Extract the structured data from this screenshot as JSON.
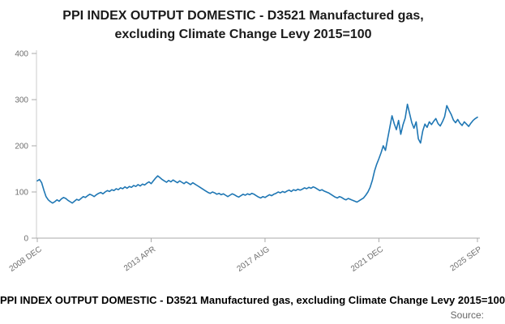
{
  "title": {
    "line1": "PPI INDEX OUTPUT DOMESTIC - D3521 Manufactured gas,",
    "line2": "excluding Climate Change Levy 2015=100"
  },
  "caption": {
    "text": "PPI INDEX OUTPUT DOMESTIC - D3521 Manufactured gas, excluding Climate Change Levy 2015=100",
    "source_label": "Source:"
  },
  "chart_data": {
    "type": "line",
    "title": "PPI INDEX OUTPUT DOMESTIC - D3521 Manufactured gas, excluding Climate Change Levy 2015=100",
    "frequency": "monthly",
    "x_start": "2008 DEC",
    "x_end": "2025 SEP",
    "x_tick_labels": [
      "2008 DEC",
      "2013 APR",
      "2017 AUG",
      "2021 DEC",
      "2025 SEP"
    ],
    "x_tick_indices": [
      0,
      52,
      104,
      156,
      201
    ],
    "y_ticks": [
      0,
      100,
      200,
      300,
      400
    ],
    "ylim": [
      0,
      400
    ],
    "grid": false,
    "legend": "none",
    "line_color": "#1f77b4",
    "series": [
      {
        "name": "PPI INDEX OUTPUT DOMESTIC - D3521 Manufactured gas, excluding Climate Change Levy 2015=100",
        "values": [
          124,
          127,
          120,
          104,
          90,
          83,
          79,
          76,
          79,
          83,
          80,
          85,
          88,
          86,
          82,
          79,
          76,
          80,
          84,
          82,
          86,
          90,
          88,
          92,
          95,
          93,
          90,
          94,
          97,
          99,
          96,
          100,
          103,
          101,
          105,
          103,
          107,
          105,
          109,
          107,
          111,
          108,
          112,
          110,
          114,
          112,
          116,
          113,
          117,
          115,
          119,
          122,
          118,
          124,
          130,
          135,
          131,
          127,
          124,
          121,
          125,
          122,
          126,
          123,
          120,
          124,
          121,
          118,
          122,
          119,
          116,
          120,
          117,
          114,
          111,
          108,
          105,
          102,
          99,
          97,
          100,
          98,
          95,
          97,
          94,
          96,
          93,
          90,
          93,
          96,
          94,
          91,
          89,
          92,
          95,
          93,
          96,
          94,
          97,
          95,
          92,
          89,
          87,
          90,
          88,
          91,
          94,
          92,
          95,
          97,
          100,
          98,
          101,
          99,
          102,
          104,
          101,
          105,
          103,
          106,
          104,
          106,
          109,
          107,
          110,
          108,
          111,
          109,
          106,
          103,
          105,
          102,
          100,
          98,
          95,
          92,
          89,
          87,
          90,
          88,
          85,
          83,
          86,
          84,
          82,
          80,
          78,
          81,
          84,
          87,
          93,
          100,
          110,
          125,
          145,
          160,
          172,
          185,
          200,
          190,
          215,
          240,
          265,
          248,
          235,
          255,
          225,
          245,
          260,
          290,
          270,
          250,
          238,
          252,
          215,
          206,
          232,
          247,
          240,
          252,
          246,
          253,
          259,
          248,
          243,
          252,
          263,
          287,
          277,
          268,
          256,
          250,
          257,
          249,
          244,
          252,
          247,
          242,
          249,
          255,
          259,
          262
        ]
      }
    ]
  }
}
